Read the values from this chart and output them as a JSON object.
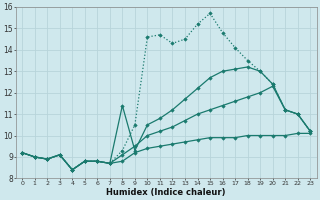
{
  "xlabel": "Humidex (Indice chaleur)",
  "xlim": [
    -0.5,
    23.5
  ],
  "ylim": [
    8,
    16
  ],
  "yticks": [
    8,
    9,
    10,
    11,
    12,
    13,
    14,
    15,
    16
  ],
  "xticks": [
    0,
    1,
    2,
    3,
    4,
    5,
    6,
    7,
    8,
    9,
    10,
    11,
    12,
    13,
    14,
    15,
    16,
    17,
    18,
    19,
    20,
    21,
    22,
    23
  ],
  "bg_color": "#cfe8ed",
  "grid_color": "#b8d4da",
  "line_color": "#1a7a6e",
  "lines": [
    {
      "x": [
        0,
        1,
        2,
        3,
        4,
        5,
        6,
        7,
        8,
        9,
        10,
        11,
        12,
        13,
        14,
        15,
        16,
        17,
        18,
        19,
        20,
        21,
        22,
        23
      ],
      "y": [
        9.2,
        9.0,
        8.9,
        9.1,
        8.4,
        8.8,
        8.8,
        8.7,
        8.8,
        9.2,
        9.4,
        9.5,
        9.6,
        9.7,
        9.8,
        9.9,
        9.9,
        9.9,
        10.0,
        10.0,
        10.0,
        10.0,
        10.1,
        10.1
      ],
      "style": "-",
      "marker": "D",
      "markersize": 1.8,
      "linewidth": 0.9
    },
    {
      "x": [
        0,
        1,
        2,
        3,
        4,
        5,
        6,
        7,
        8,
        9,
        10,
        11,
        12,
        13,
        14,
        15,
        16,
        17,
        18,
        19,
        20,
        21,
        22,
        23
      ],
      "y": [
        9.2,
        9.0,
        8.9,
        9.1,
        8.4,
        8.8,
        8.8,
        8.7,
        9.1,
        9.5,
        10.0,
        10.2,
        10.4,
        10.7,
        11.0,
        11.2,
        11.4,
        11.6,
        11.8,
        12.0,
        12.3,
        11.2,
        11.0,
        10.2
      ],
      "style": "-",
      "marker": "D",
      "markersize": 1.8,
      "linewidth": 0.9
    },
    {
      "x": [
        0,
        1,
        2,
        3,
        4,
        5,
        6,
        7,
        8,
        9,
        10,
        11,
        12,
        13,
        14,
        15,
        16,
        17,
        18,
        19,
        20,
        21,
        22,
        23
      ],
      "y": [
        9.2,
        9.0,
        8.9,
        9.1,
        8.4,
        8.8,
        8.8,
        8.7,
        11.4,
        9.3,
        10.5,
        10.8,
        11.2,
        11.7,
        12.2,
        12.7,
        13.0,
        13.1,
        13.2,
        13.0,
        12.4,
        11.2,
        11.0,
        10.2
      ],
      "style": "-",
      "marker": "D",
      "markersize": 1.8,
      "linewidth": 0.9
    },
    {
      "x": [
        0,
        1,
        2,
        3,
        4,
        5,
        6,
        7,
        8,
        9,
        10,
        11,
        12,
        13,
        14,
        15,
        16,
        17,
        18,
        19,
        20,
        21,
        22,
        23
      ],
      "y": [
        9.2,
        9.0,
        8.9,
        9.1,
        8.4,
        8.8,
        8.8,
        8.7,
        9.3,
        10.5,
        14.6,
        14.7,
        14.3,
        14.5,
        15.2,
        15.7,
        14.8,
        14.1,
        13.5,
        13.0,
        12.4,
        11.2,
        11.0,
        10.2
      ],
      "style": ":",
      "marker": "D",
      "markersize": 1.8,
      "linewidth": 0.9
    }
  ]
}
